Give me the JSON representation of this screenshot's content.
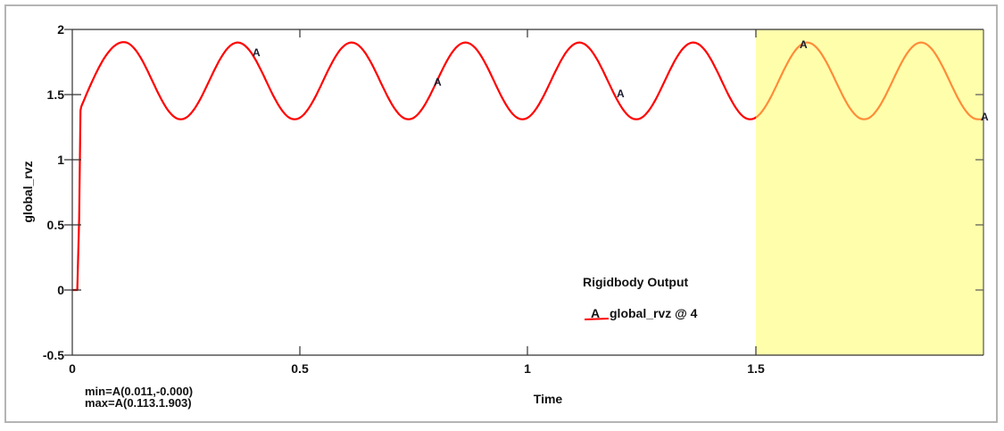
{
  "chart_data": {
    "type": "line",
    "title": "",
    "legend_title": "Rigidbody Output",
    "xlabel": "Time",
    "ylabel": "global_rvz",
    "xlim": [
      0,
      2.0
    ],
    "ylim": [
      -0.5,
      2
    ],
    "x_ticks": [
      0,
      0.5,
      1,
      1.5
    ],
    "x_tick_labels": [
      "0",
      "0.5",
      "1",
      "1.5"
    ],
    "y_ticks": [
      -0.5,
      0,
      0.5,
      1,
      1.5,
      2
    ],
    "y_tick_labels": [
      "-0.5",
      "0",
      "0.5",
      "1",
      "1.5",
      "2"
    ],
    "grid": false,
    "legend_position": "lower-right-inside",
    "series": [
      {
        "name": "global_rvz @ 4",
        "marker_label": "A",
        "color": "#ff0000",
        "x": [
          0,
          0.011,
          0.015,
          0.018,
          0.02,
          0.113,
          0.238,
          0.363,
          0.488,
          0.613,
          0.738,
          0.863,
          0.988,
          1.113,
          1.238,
          1.363,
          1.488,
          1.613,
          1.738,
          1.863,
          1.988,
          2.0
        ],
        "y": [
          0,
          0.0,
          0.55,
          1.38,
          1.41,
          1.903,
          1.31,
          1.9,
          1.31,
          1.9,
          1.31,
          1.9,
          1.31,
          1.9,
          1.31,
          1.9,
          1.31,
          1.9,
          1.31,
          1.9,
          1.31,
          1.31
        ]
      }
    ],
    "highlight_region": {
      "x_start": 1.5,
      "x_end": 2.0,
      "color": "#ffff99"
    },
    "annotations": {
      "min": "min=A(0.011,-0.000)",
      "max": "max=A(0.113.1.903)"
    }
  },
  "legend": {
    "title": "Rigidbody Output",
    "entry_marker": "A",
    "entry_label": "global_rvz @ 4"
  },
  "axes": {
    "xlabel": "Time",
    "ylabel": "global_rvz",
    "x_ticks": [
      "0",
      "0.5",
      "1",
      "1.5"
    ],
    "y_ticks": [
      "2",
      "1.5",
      "1",
      "0.5",
      "0",
      "-0.5"
    ]
  },
  "stats": {
    "min": "min=A(0.011,-0.000)",
    "max": "max=A(0.113.1.903)"
  },
  "markers": [
    "A",
    "A",
    "A",
    "A",
    "A"
  ]
}
